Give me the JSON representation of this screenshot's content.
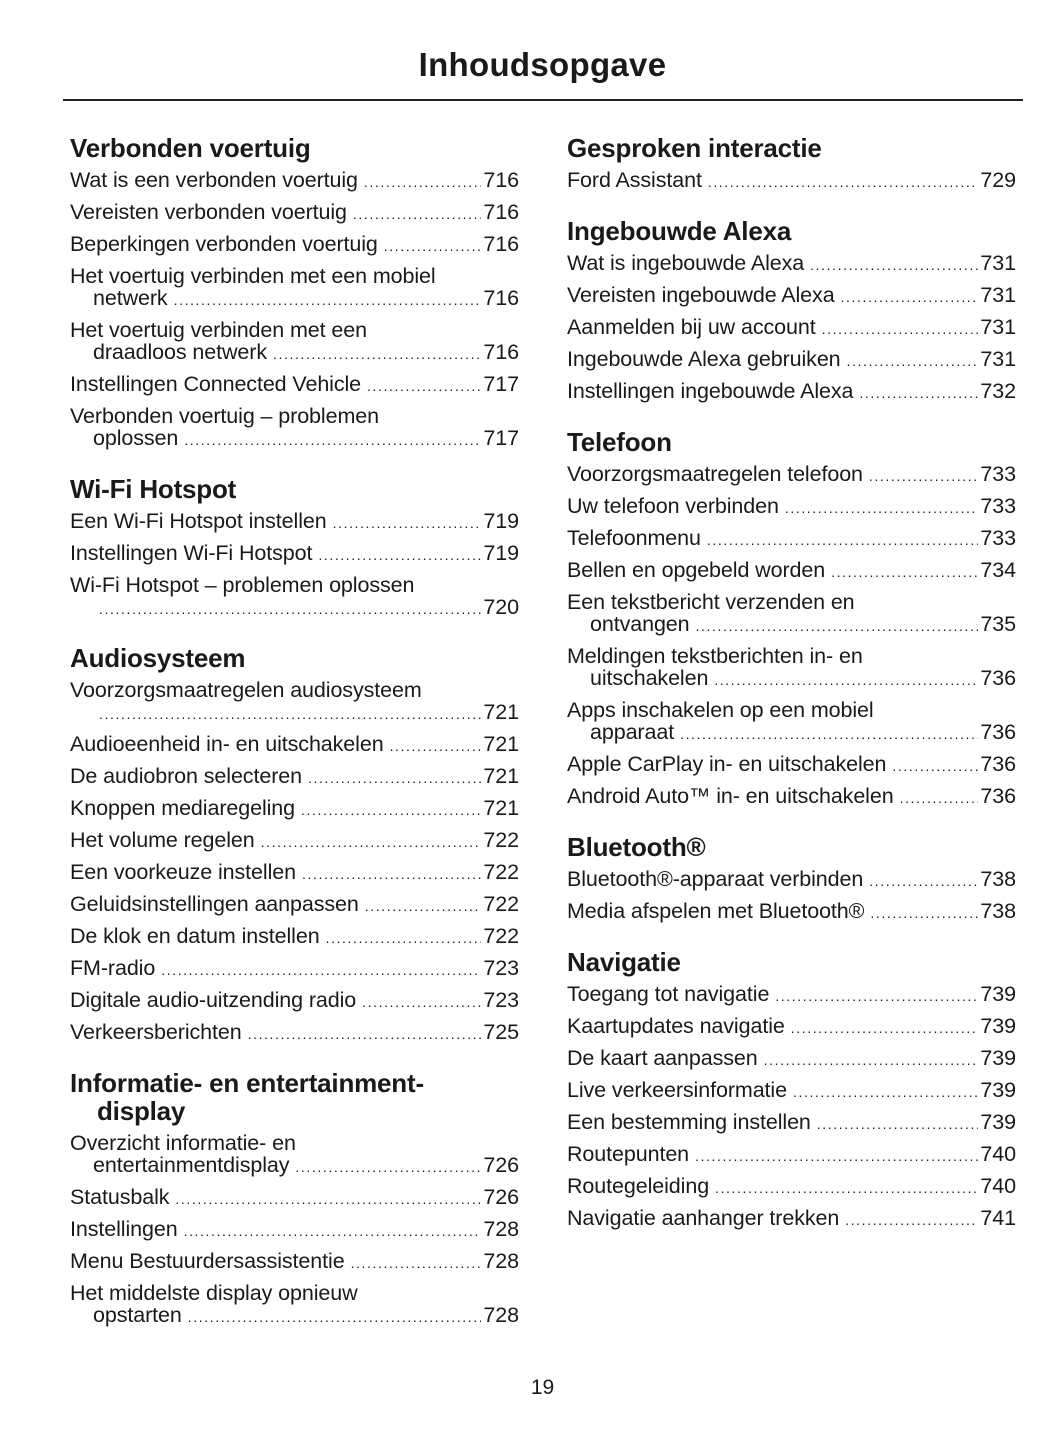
{
  "title": "Inhoudsopgave",
  "page_number": "19",
  "columns": [
    [
      {
        "heading": "Verbonden voertuig",
        "entries": [
          {
            "text": "Wat is een verbonden voertuig",
            "page": "716"
          },
          {
            "text": "Vereisten verbonden voertuig",
            "page": "716"
          },
          {
            "text": "Beperkingen verbonden voertuig",
            "page": "716"
          },
          {
            "text": "Het voertuig verbinden met een mobiel",
            "cont": "netwerk",
            "page": "716"
          },
          {
            "text": "Het voertuig verbinden met een",
            "cont": "draadloos netwerk",
            "page": "716"
          },
          {
            "text": "Instellingen Connected Vehicle",
            "page": "717"
          },
          {
            "text": "Verbonden voertuig – problemen",
            "cont": "oplossen",
            "page": "717"
          }
        ]
      },
      {
        "heading": "Wi-Fi Hotspot",
        "entries": [
          {
            "text": "Een Wi-Fi Hotspot instellen",
            "page": "719"
          },
          {
            "text": "Instellingen Wi-Fi Hotspot",
            "page": "719"
          },
          {
            "text": "Wi-Fi Hotspot – problemen oplossen",
            "cont": "",
            "page": "720"
          }
        ]
      },
      {
        "heading": "Audiosysteem",
        "entries": [
          {
            "text": "Voorzorgsmaatregelen audiosysteem",
            "cont": "",
            "page": "721"
          },
          {
            "text": "Audioeenheid in- en uitschakelen",
            "page": "721"
          },
          {
            "text": "De audiobron selecteren",
            "page": "721"
          },
          {
            "text": "Knoppen mediaregeling",
            "page": "721"
          },
          {
            "text": "Het volume regelen",
            "page": "722"
          },
          {
            "text": "Een voorkeuze instellen",
            "page": "722"
          },
          {
            "text": "Geluidsinstellingen aanpassen",
            "page": "722"
          },
          {
            "text": "De klok en datum instellen",
            "page": "722"
          },
          {
            "text": "FM-radio",
            "page": "723"
          },
          {
            "text": "Digitale audio-uitzending radio",
            "page": "723"
          },
          {
            "text": "Verkeersberichten",
            "page": "725"
          }
        ]
      },
      {
        "heading": "Informatie- en entertainment-",
        "heading_cont": "display",
        "entries": [
          {
            "text": "Overzicht informatie- en",
            "cont": "entertainmentdisplay",
            "page": "726"
          },
          {
            "text": "Statusbalk",
            "page": "726"
          },
          {
            "text": "Instellingen",
            "page": "728"
          },
          {
            "text": "Menu Bestuurdersassistentie",
            "page": "728"
          },
          {
            "text": "Het middelste display opnieuw",
            "cont": "opstarten",
            "page": "728"
          }
        ]
      }
    ],
    [
      {
        "heading": "Gesproken interactie",
        "entries": [
          {
            "text": "Ford Assistant",
            "page": "729"
          }
        ]
      },
      {
        "heading": "Ingebouwde Alexa",
        "entries": [
          {
            "text": "Wat is ingebouwde Alexa",
            "page": "731"
          },
          {
            "text": "Vereisten ingebouwde Alexa",
            "page": "731"
          },
          {
            "text": "Aanmelden bij uw account",
            "page": "731"
          },
          {
            "text": "Ingebouwde Alexa gebruiken",
            "page": "731"
          },
          {
            "text": "Instellingen ingebouwde Alexa",
            "page": "732"
          }
        ]
      },
      {
        "heading": "Telefoon",
        "entries": [
          {
            "text": "Voorzorgsmaatregelen telefoon",
            "page": "733"
          },
          {
            "text": "Uw telefoon verbinden",
            "page": "733"
          },
          {
            "text": "Telefoonmenu",
            "page": "733"
          },
          {
            "text": "Bellen en opgebeld worden",
            "page": "734"
          },
          {
            "text": "Een tekstbericht verzenden en",
            "cont": "ontvangen",
            "page": "735"
          },
          {
            "text": "Meldingen tekstberichten in- en",
            "cont": "uitschakelen",
            "page": "736"
          },
          {
            "text": "Apps inschakelen op een mobiel",
            "cont": "apparaat",
            "page": "736"
          },
          {
            "text": "Apple CarPlay in- en uitschakelen",
            "page": "736"
          },
          {
            "text": "Android Auto™ in- en uitschakelen",
            "page": "736"
          }
        ]
      },
      {
        "heading": "Bluetooth®",
        "entries": [
          {
            "text": "Bluetooth®-apparaat verbinden",
            "page": "738"
          },
          {
            "text": "Media afspelen met Bluetooth®",
            "page": "738"
          }
        ]
      },
      {
        "heading": "Navigatie",
        "entries": [
          {
            "text": "Toegang tot navigatie",
            "page": "739"
          },
          {
            "text": "Kaartupdates navigatie",
            "page": "739"
          },
          {
            "text": "De kaart aanpassen",
            "page": "739"
          },
          {
            "text": "Live verkeersinformatie",
            "page": "739"
          },
          {
            "text": "Een bestemming instellen",
            "page": "739"
          },
          {
            "text": "Routepunten",
            "page": "740"
          },
          {
            "text": "Routegeleiding",
            "page": "740"
          },
          {
            "text": "Navigatie aanhanger trekken",
            "page": "741"
          }
        ]
      }
    ]
  ]
}
